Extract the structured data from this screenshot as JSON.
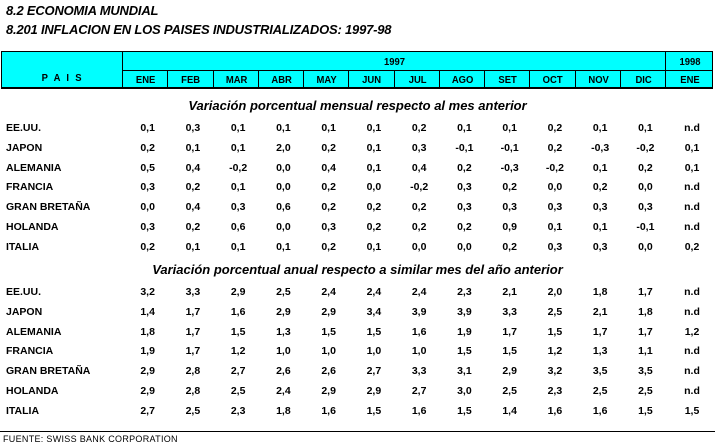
{
  "title1": "8.2  ECONOMIA MUNDIAL",
  "title2": "8.201  INFLACION EN LOS PAISES INDUSTRIALIZADOS: 1997-98",
  "header": {
    "pais": "P A I S",
    "year1": "1997",
    "year2": "1998",
    "months": [
      "ENE",
      "FEB",
      "MAR",
      "ABR",
      "MAY",
      "JUN",
      "JUL",
      "AGO",
      "SET",
      "OCT",
      "NOV",
      "DIC",
      "ENE"
    ]
  },
  "sections": [
    {
      "title": "Variación porcentual mensual respecto al mes anterior",
      "rows": [
        {
          "country": "EE.UU.",
          "values": [
            "0,1",
            "0,3",
            "0,1",
            "0,1",
            "0,1",
            "0,1",
            "0,2",
            "0,1",
            "0,1",
            "0,2",
            "0,1",
            "0,1",
            "n.d"
          ]
        },
        {
          "country": "JAPON",
          "values": [
            "0,2",
            "0,1",
            "0,1",
            "2,0",
            "0,2",
            "0,1",
            "0,3",
            "-0,1",
            "-0,1",
            "0,2",
            "-0,3",
            "-0,2",
            "0,1"
          ]
        },
        {
          "country": "ALEMANIA",
          "values": [
            "0,5",
            "0,4",
            "-0,2",
            "0,0",
            "0,4",
            "0,1",
            "0,4",
            "0,2",
            "-0,3",
            "-0,2",
            "0,1",
            "0,2",
            "0,1"
          ]
        },
        {
          "country": "FRANCIA",
          "values": [
            "0,3",
            "0,2",
            "0,1",
            "0,0",
            "0,2",
            "0,0",
            "-0,2",
            "0,3",
            "0,2",
            "0,0",
            "0,2",
            "0,0",
            "n.d"
          ]
        },
        {
          "country": "GRAN BRETAÑA",
          "values": [
            "0,0",
            "0,4",
            "0,3",
            "0,6",
            "0,2",
            "0,2",
            "0,2",
            "0,3",
            "0,3",
            "0,3",
            "0,3",
            "0,3",
            "n.d"
          ]
        },
        {
          "country": "HOLANDA",
          "values": [
            "0,3",
            "0,2",
            "0,6",
            "0,0",
            "0,3",
            "0,2",
            "0,2",
            "0,2",
            "0,9",
            "0,1",
            "0,1",
            "-0,1",
            "n.d"
          ]
        },
        {
          "country": "ITALIA",
          "values": [
            "0,2",
            "0,1",
            "0,1",
            "0,1",
            "0,2",
            "0,1",
            "0,0",
            "0,0",
            "0,2",
            "0,3",
            "0,3",
            "0,0",
            "0,2"
          ]
        }
      ]
    },
    {
      "title": "Variación porcentual anual respecto a similar mes del año anterior",
      "rows": [
        {
          "country": "EE.UU.",
          "values": [
            "3,2",
            "3,3",
            "2,9",
            "2,5",
            "2,4",
            "2,4",
            "2,4",
            "2,3",
            "2,1",
            "2,0",
            "1,8",
            "1,7",
            "n.d"
          ]
        },
        {
          "country": "JAPON",
          "values": [
            "1,4",
            "1,7",
            "1,6",
            "2,9",
            "2,9",
            "3,4",
            "3,9",
            "3,9",
            "3,3",
            "2,5",
            "2,1",
            "1,8",
            "n.d"
          ]
        },
        {
          "country": "ALEMANIA",
          "values": [
            "1,8",
            "1,7",
            "1,5",
            "1,3",
            "1,5",
            "1,5",
            "1,6",
            "1,9",
            "1,7",
            "1,5",
            "1,7",
            "1,7",
            "1,2"
          ]
        },
        {
          "country": "FRANCIA",
          "values": [
            "1,9",
            "1,7",
            "1,2",
            "1,0",
            "1,0",
            "1,0",
            "1,0",
            "1,5",
            "1,5",
            "1,2",
            "1,3",
            "1,1",
            "n.d"
          ]
        },
        {
          "country": "GRAN BRETAÑA",
          "values": [
            "2,9",
            "2,8",
            "2,7",
            "2,6",
            "2,6",
            "2,7",
            "3,3",
            "3,1",
            "2,9",
            "3,2",
            "3,5",
            "3,5",
            "n.d"
          ]
        },
        {
          "country": "HOLANDA",
          "values": [
            "2,9",
            "2,8",
            "2,5",
            "2,4",
            "2,9",
            "2,9",
            "2,7",
            "3,0",
            "2,5",
            "2,3",
            "2,5",
            "2,5",
            "n.d"
          ]
        },
        {
          "country": "ITALIA",
          "values": [
            "2,7",
            "2,5",
            "2,3",
            "1,8",
            "1,6",
            "1,5",
            "1,6",
            "1,5",
            "1,4",
            "1,6",
            "1,6",
            "1,5",
            "1,5"
          ]
        }
      ]
    }
  ],
  "source": "FUENTE: SWISS BANK CORPORATION"
}
